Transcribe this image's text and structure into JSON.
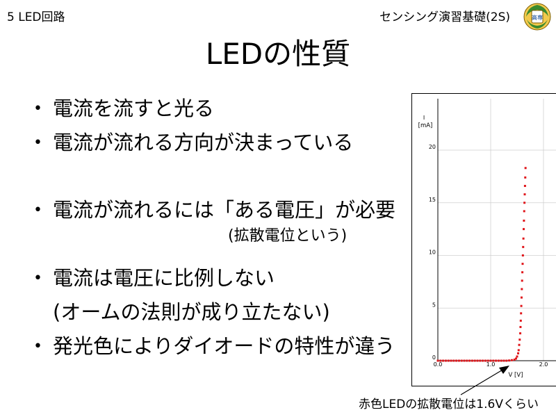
{
  "header": {
    "left": "5 LED回路",
    "right": "センシング演習基礎(2S)"
  },
  "logo": {
    "text": "高専",
    "icon": "school-emblem-icon"
  },
  "title": "LEDの性質",
  "bullets": [
    "電流を流すと光る",
    "電流が流れる方向が決まっている",
    "電流が流れるには「ある電圧」が必要",
    "(拡散電位という)",
    "電流は電圧に比例しない",
    "(オームの法則が成り立たない)",
    "発光色によりダイオードの特性が違う"
  ],
  "caption": "赤色LEDの拡散電位は1.6Vくらい",
  "chart_data": {
    "type": "scatter",
    "xlabel": "V [V]",
    "ylabel": "I [mA]",
    "xlim": [
      0,
      2.0
    ],
    "ylim": [
      0,
      20
    ],
    "x_ticks": [
      "0.0",
      "1.0",
      "2.0"
    ],
    "y_ticks": [
      "0",
      "5",
      "10",
      "15",
      "20"
    ],
    "grid": true,
    "marker_color": "#e0161b",
    "series": [
      {
        "points": [
          [
            0.0,
            0
          ],
          [
            0.05,
            0
          ],
          [
            0.1,
            0
          ],
          [
            0.15,
            0
          ],
          [
            0.2,
            0
          ],
          [
            0.25,
            0
          ],
          [
            0.3,
            0
          ],
          [
            0.35,
            0
          ],
          [
            0.4,
            0
          ],
          [
            0.45,
            0
          ],
          [
            0.5,
            0
          ],
          [
            0.55,
            0
          ],
          [
            0.6,
            0
          ],
          [
            0.65,
            0
          ],
          [
            0.7,
            0
          ],
          [
            0.75,
            0
          ],
          [
            0.8,
            0
          ],
          [
            0.85,
            0
          ],
          [
            0.9,
            0
          ],
          [
            0.95,
            0
          ],
          [
            1.0,
            0
          ],
          [
            1.05,
            0
          ],
          [
            1.1,
            0
          ],
          [
            1.15,
            0
          ],
          [
            1.2,
            0
          ],
          [
            1.25,
            0
          ],
          [
            1.3,
            0
          ],
          [
            1.35,
            0.02
          ],
          [
            1.4,
            0.05
          ],
          [
            1.45,
            0.1
          ],
          [
            1.48,
            0.2
          ],
          [
            1.5,
            0.4
          ],
          [
            1.52,
            0.7
          ],
          [
            1.53,
            1.0
          ],
          [
            1.54,
            1.5
          ],
          [
            1.55,
            2.0
          ],
          [
            1.56,
            2.6
          ],
          [
            1.565,
            3.2
          ],
          [
            1.57,
            3.8
          ],
          [
            1.575,
            4.5
          ],
          [
            1.58,
            5.2
          ],
          [
            1.585,
            6.0
          ],
          [
            1.59,
            6.8
          ],
          [
            1.595,
            7.6
          ],
          [
            1.6,
            8.4
          ],
          [
            1.605,
            9.2
          ],
          [
            1.61,
            10.0
          ],
          [
            1.615,
            10.8
          ],
          [
            1.62,
            11.6
          ],
          [
            1.625,
            12.5
          ],
          [
            1.63,
            13.3
          ],
          [
            1.635,
            14.2
          ],
          [
            1.64,
            15.0
          ],
          [
            1.645,
            15.8
          ],
          [
            1.65,
            16.6
          ],
          [
            1.655,
            17.4
          ],
          [
            1.66,
            18.3
          ]
        ]
      }
    ]
  }
}
